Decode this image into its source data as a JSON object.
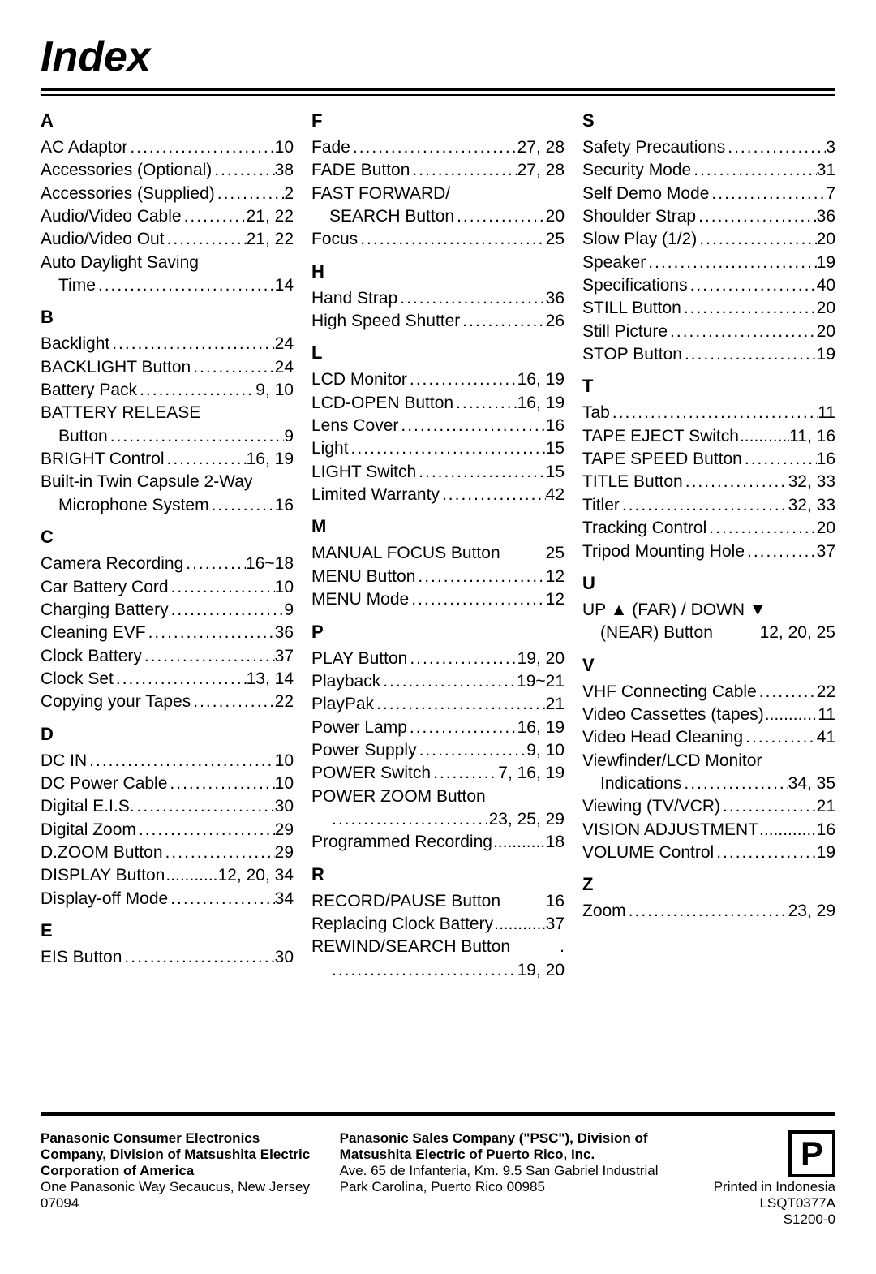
{
  "title": "Index",
  "columns": [
    {
      "sections": [
        {
          "letter": "A",
          "entries": [
            {
              "label": "AC Adaptor",
              "pg": "10"
            },
            {
              "label": "Accessories (Optional)",
              "pg": "38"
            },
            {
              "label": "Accessories (Supplied)",
              "pg": "2"
            },
            {
              "label": "Audio/Video Cable",
              "pg": "21, 22"
            },
            {
              "label": "Audio/Video Out",
              "pg": "21, 22"
            },
            {
              "label": "Auto Daylight Saving",
              "wrap": true
            },
            {
              "label": "Time",
              "pg": "14",
              "cont": true
            }
          ]
        },
        {
          "letter": "B",
          "entries": [
            {
              "label": "Backlight",
              "pg": "24"
            },
            {
              "label": "BACKLIGHT Button",
              "pg": "24"
            },
            {
              "label": "Battery Pack",
              "pg": "9, 10"
            },
            {
              "label": "BATTERY RELEASE",
              "wrap": true
            },
            {
              "label": "Button",
              "pg": "9",
              "cont": true
            },
            {
              "label": "BRIGHT Control",
              "pg": "16, 19"
            },
            {
              "label": "Built-in Twin Capsule 2-Way",
              "wrap": true
            },
            {
              "label": "Microphone System",
              "pg": "16",
              "cont": true
            }
          ]
        },
        {
          "letter": "C",
          "entries": [
            {
              "label": "Camera Recording",
              "pg": "16~18"
            },
            {
              "label": "Car Battery Cord",
              "pg": "10"
            },
            {
              "label": "Charging Battery",
              "pg": "9"
            },
            {
              "label": "Cleaning EVF",
              "pg": "36"
            },
            {
              "label": "Clock Battery",
              "pg": "37"
            },
            {
              "label": "Clock Set",
              "pg": "13, 14"
            },
            {
              "label": "Copying your Tapes",
              "pg": "22"
            }
          ]
        },
        {
          "letter": "D",
          "entries": [
            {
              "label": "DC IN",
              "pg": "10"
            },
            {
              "label": "DC Power Cable",
              "pg": "10"
            },
            {
              "label": "Digital E.I.S.",
              "pg": "30"
            },
            {
              "label": "Digital Zoom",
              "pg": "29"
            },
            {
              "label": "D.ZOOM Button",
              "pg": "29"
            },
            {
              "label": "DISPLAY Button",
              "pg": "12, 20, 34",
              "tight": true
            },
            {
              "label": "Display-off Mode",
              "pg": "34"
            }
          ]
        },
        {
          "letter": "E",
          "entries": [
            {
              "label": "EIS Button",
              "pg": "30"
            }
          ]
        }
      ]
    },
    {
      "sections": [
        {
          "letter": "F",
          "entries": [
            {
              "label": "Fade",
              "pg": "27, 28"
            },
            {
              "label": "FADE Button",
              "pg": "27, 28"
            },
            {
              "label": "FAST FORWARD/",
              "wrap": true
            },
            {
              "label": "SEARCH Button",
              "pg": "20",
              "cont": true
            },
            {
              "label": "Focus",
              "pg": "25"
            }
          ]
        },
        {
          "letter": "H",
          "entries": [
            {
              "label": "Hand Strap",
              "pg": "36"
            },
            {
              "label": "High Speed Shutter",
              "pg": "26"
            }
          ]
        },
        {
          "letter": "L",
          "entries": [
            {
              "label": "LCD Monitor",
              "pg": "16, 19"
            },
            {
              "label": "LCD-OPEN Button",
              "pg": "16, 19"
            },
            {
              "label": "Lens Cover",
              "pg": "16"
            },
            {
              "label": "Light",
              "pg": "15"
            },
            {
              "label": "LIGHT Switch",
              "pg": "15"
            },
            {
              "label": "Limited Warranty",
              "pg": "42"
            }
          ]
        },
        {
          "letter": "M",
          "entries": [
            {
              "label": "MANUAL FOCUS Button",
              "pg": "25",
              "nodots": true
            },
            {
              "label": "MENU Button",
              "pg": "12"
            },
            {
              "label": "MENU Mode",
              "pg": "12"
            }
          ]
        },
        {
          "letter": "P",
          "entries": [
            {
              "label": "PLAY Button",
              "pg": "19, 20"
            },
            {
              "label": "Playback",
              "pg": "19~21"
            },
            {
              "label": "PlayPak",
              "pg": "21"
            },
            {
              "label": "Power Lamp",
              "pg": "16, 19"
            },
            {
              "label": "Power Supply",
              "pg": "9, 10"
            },
            {
              "label": "POWER Switch",
              "pg": "7, 16, 19"
            },
            {
              "label": "POWER ZOOM Button",
              "wrap": true
            },
            {
              "label": "",
              "pg": "23, 25, 29",
              "cont": true
            },
            {
              "label": "Programmed Recording",
              "pg": "18",
              "tight": true
            }
          ]
        },
        {
          "letter": "R",
          "entries": [
            {
              "label": "RECORD/PAUSE Button",
              "pg": "16",
              "nodots": true
            },
            {
              "label": "Replacing Clock Battery",
              "pg": "37",
              "tight": true
            },
            {
              "label": "REWIND/SEARCH Button",
              "pg": ".",
              "nodots": true
            },
            {
              "label": "",
              "pg": "19, 20",
              "cont": true
            }
          ]
        }
      ]
    },
    {
      "sections": [
        {
          "letter": "S",
          "entries": [
            {
              "label": "Safety Precautions",
              "pg": "3"
            },
            {
              "label": "Security Mode",
              "pg": "31"
            },
            {
              "label": "Self Demo Mode",
              "pg": "7"
            },
            {
              "label": "Shoulder Strap",
              "pg": "36"
            },
            {
              "label": "Slow Play (1/2)",
              "pg": "20"
            },
            {
              "label": "Speaker",
              "pg": "19"
            },
            {
              "label": "Specifications",
              "pg": "40"
            },
            {
              "label": "STILL Button",
              "pg": "20"
            },
            {
              "label": "Still Picture",
              "pg": "20"
            },
            {
              "label": "STOP Button",
              "pg": "19"
            }
          ]
        },
        {
          "letter": "T",
          "entries": [
            {
              "label": "Tab",
              "pg": "11"
            },
            {
              "label": "TAPE EJECT Switch",
              "pg": "11, 16",
              "tight": true
            },
            {
              "label": "TAPE SPEED Button",
              "pg": "16"
            },
            {
              "label": "TITLE Button",
              "pg": "32, 33"
            },
            {
              "label": "Titler",
              "pg": "32, 33"
            },
            {
              "label": "Tracking Control",
              "pg": "20"
            },
            {
              "label": "Tripod Mounting Hole",
              "pg": "37"
            }
          ]
        },
        {
          "letter": "U",
          "entries": [
            {
              "label": "UP ▲ (FAR) / DOWN ▼",
              "wrap": true
            },
            {
              "label": "(NEAR) Button",
              "pg": "12, 20, 25",
              "cont": true,
              "nodots": true
            }
          ]
        },
        {
          "letter": "V",
          "entries": [
            {
              "label": "VHF Connecting Cable",
              "pg": "22"
            },
            {
              "label": "Video Cassettes (tapes)",
              "pg": "11",
              "tight": true
            },
            {
              "label": "Video Head Cleaning",
              "pg": "41"
            },
            {
              "label": "Viewfinder/LCD Monitor",
              "wrap": true
            },
            {
              "label": "Indications",
              "pg": "34, 35",
              "cont": true
            },
            {
              "label": "Viewing (TV/VCR)",
              "pg": "21"
            },
            {
              "label": "VISION ADJUSTMENT",
              "pg": "16",
              "tight": true
            },
            {
              "label": "VOLUME Control",
              "pg": "19"
            }
          ]
        },
        {
          "letter": "Z",
          "entries": [
            {
              "label": "Zoom",
              "pg": "23, 29"
            }
          ]
        }
      ]
    }
  ],
  "footer": {
    "left": {
      "bold": "Panasonic Consumer Electronics Company, Division of Matsushita Electric Corporation of America",
      "plain": "One Panasonic Way Secaucus, New Jersey 07094"
    },
    "mid": {
      "bold": "Panasonic Sales Company (\"PSC\"), Division of Matsushita Electric of Puerto Rico, Inc.",
      "plain": "Ave. 65 de Infanteria, Km. 9.5 San Gabriel Industrial Park Carolina, Puerto Rico 00985"
    },
    "right": {
      "logo": "P",
      "line1": "Printed in Indonesia",
      "line2": "LSQT0377A",
      "line3": "S1200-0"
    }
  }
}
